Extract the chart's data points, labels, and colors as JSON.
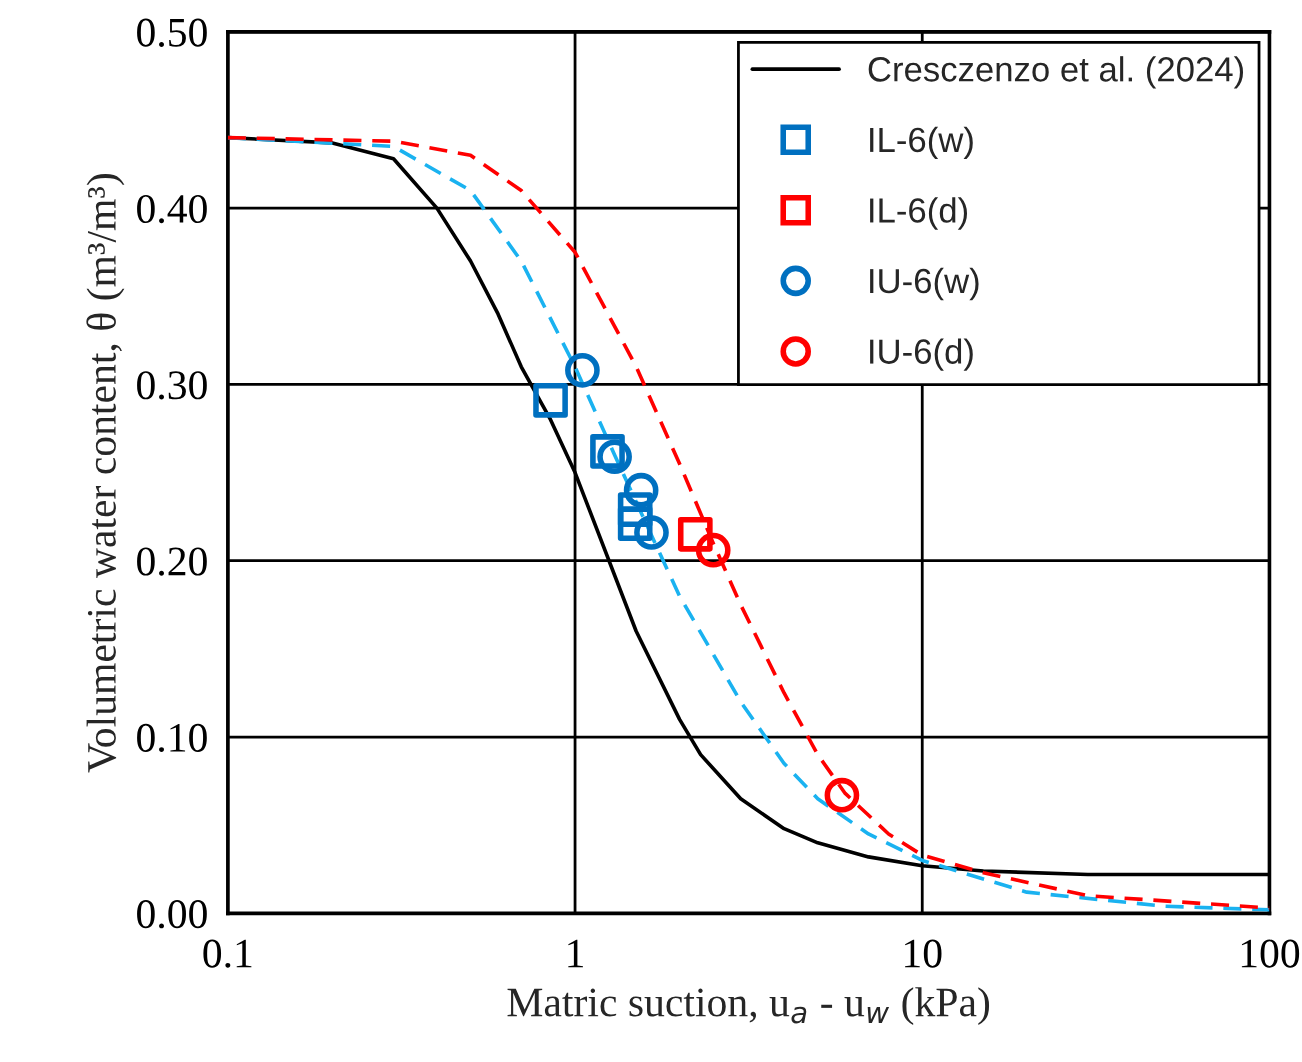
{
  "chart_data": {
    "type": "line",
    "xlabel": "Matric suction, u$_{a}$ - u$_{w}$ (kPa)",
    "ylabel": "Volumetric water content, θ (m³/m³)",
    "log": "x",
    "xlim": [
      0.1,
      100
    ],
    "xticks": [
      0.1,
      1,
      10,
      100
    ],
    "ylim": [
      0,
      0.5
    ],
    "yticks": [
      {
        "value": 0,
        "label": "0.00"
      },
      {
        "value": 0.1,
        "label": "0.10"
      },
      {
        "value": 0.2,
        "label": "0.20"
      },
      {
        "value": 0.3,
        "label": "0.30"
      },
      {
        "value": 0.4,
        "label": "0.40"
      },
      {
        "value": 0.5,
        "label": "0.50"
      }
    ],
    "grid": true,
    "legend": "top right",
    "series": [
      {
        "name": "Cresczenzo et al. (2024)",
        "line_style": "solid",
        "marker": "none",
        "color": "#000000",
        "x": [
          0.1,
          0.2,
          0.3,
          0.4,
          0.5,
          0.6,
          0.7,
          0.85,
          1,
          1.5,
          2,
          2.3,
          3,
          4,
          5,
          7,
          10,
          15,
          30,
          100
        ],
        "values": [
          0.44,
          0.437,
          0.428,
          0.4,
          0.37,
          0.34,
          0.31,
          0.28,
          0.25,
          0.16,
          0.11,
          0.09,
          0.065,
          0.048,
          0.04,
          0.032,
          0.027,
          0.024,
          0.022,
          0.022
        ]
      },
      {
        "name": "IL-6(w)",
        "type": "scatter",
        "marker": "square",
        "color": "#0070c0",
        "x": [
          0.85,
          1.24,
          1.49,
          1.49
        ],
        "values": [
          0.291,
          0.262,
          0.229,
          0.221
        ]
      },
      {
        "name": "IL-6(d)",
        "type": "scatter",
        "marker": "square",
        "color": "#ff0000",
        "x": [
          2.22
        ],
        "values": [
          0.215
        ]
      },
      {
        "name": "IU-6(w)",
        "type": "scatter",
        "marker": "circle",
        "color": "#0070c0",
        "x": [
          1.05,
          1.3,
          1.55,
          1.66
        ],
        "values": [
          0.308,
          0.259,
          0.24,
          0.216
        ]
      },
      {
        "name": "IU-6(d)",
        "type": "scatter",
        "marker": "circle",
        "color": "#ff0000",
        "x": [
          2.5,
          5.87
        ],
        "values": [
          0.206,
          0.067
        ]
      },
      {
        "line_style": "dashed",
        "marker": "none",
        "color": "#1ab2f0",
        "x": [
          0.1,
          0.3,
          0.5,
          0.7,
          1,
          1.3,
          1.7,
          2,
          3,
          4,
          5,
          7,
          10,
          20,
          50,
          100
        ],
        "values": [
          0.44,
          0.435,
          0.41,
          0.37,
          0.31,
          0.26,
          0.21,
          0.18,
          0.12,
          0.085,
          0.065,
          0.045,
          0.03,
          0.012,
          0.004,
          0.002
        ]
      },
      {
        "line_style": "dashed",
        "marker": "none",
        "color": "#ff0000",
        "x": [
          0.1,
          0.3,
          0.5,
          0.7,
          1,
          1.5,
          2,
          2.5,
          3,
          4,
          5,
          6,
          8,
          10,
          15,
          30,
          100
        ],
        "values": [
          0.44,
          0.438,
          0.43,
          0.41,
          0.375,
          0.31,
          0.255,
          0.21,
          0.175,
          0.125,
          0.09,
          0.068,
          0.045,
          0.033,
          0.023,
          0.01,
          0.003
        ]
      }
    ]
  }
}
